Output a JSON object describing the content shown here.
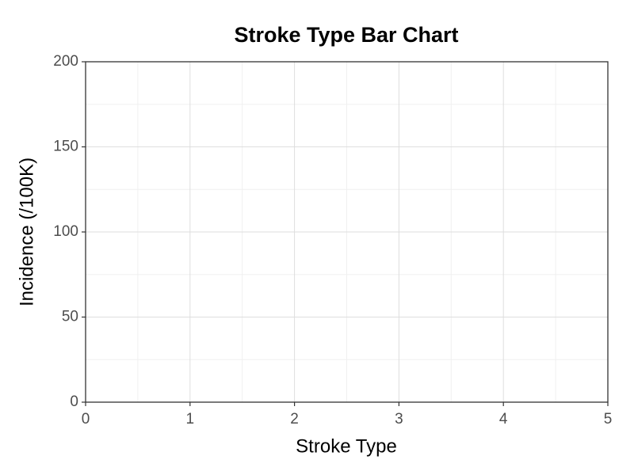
{
  "chart_data": {
    "type": "bar",
    "title": "Stroke Type Bar Chart",
    "x_label": "Stroke Type",
    "y_label": "Incidence (/100K)",
    "xlim": [
      0,
      5
    ],
    "xticks": [
      0,
      1,
      2,
      3,
      4,
      5
    ],
    "ylim": [
      0,
      200
    ],
    "yticks": [
      0,
      50,
      100,
      150,
      200
    ],
    "grid": true
  }
}
